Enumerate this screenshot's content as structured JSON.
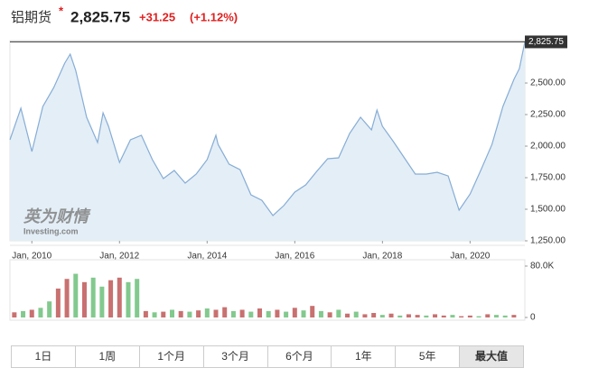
{
  "header": {
    "title": "铝期货",
    "marker": "*",
    "price": "2,825.75",
    "change": "+31.25",
    "change_pct": "(+1.12%)"
  },
  "watermark": {
    "brand": "英为财情",
    "site": "Investing.com"
  },
  "chart_data": [
    {
      "type": "area",
      "color": "#86add6",
      "fill": "#e4eef6",
      "x": [
        2009.5,
        2009.75,
        2010.0,
        2010.25,
        2010.5,
        2010.75,
        2010.875,
        2011.0,
        2011.25,
        2011.5,
        2011.625,
        2011.75,
        2012.0,
        2012.25,
        2012.5,
        2012.75,
        2013.0,
        2013.25,
        2013.5,
        2013.75,
        2014.0,
        2014.2,
        2014.25,
        2014.5,
        2014.75,
        2015.0,
        2015.25,
        2015.5,
        2015.75,
        2016.0,
        2016.25,
        2016.5,
        2016.75,
        2017.0,
        2017.25,
        2017.5,
        2017.75,
        2017.875,
        2018.0,
        2018.25,
        2018.5,
        2018.75,
        2019.0,
        2019.25,
        2019.5,
        2019.75,
        2020.0,
        2020.25,
        2020.5,
        2020.75,
        2021.0,
        2021.125,
        2021.25
      ],
      "values": [
        2050,
        2300,
        1957,
        2314,
        2464,
        2657,
        2729,
        2600,
        2229,
        2029,
        2264,
        2157,
        1871,
        2050,
        2086,
        1893,
        1743,
        1807,
        1707,
        1779,
        1893,
        2086,
        2014,
        1857,
        1814,
        1614,
        1571,
        1450,
        1529,
        1636,
        1693,
        1800,
        1900,
        1907,
        2100,
        2229,
        2129,
        2286,
        2157,
        2036,
        1907,
        1779,
        1779,
        1793,
        1764,
        1493,
        1621,
        1814,
        2014,
        2314,
        2529,
        2614,
        2825.75
      ],
      "xlim": [
        2009.5,
        2021.25
      ],
      "xticks": [
        {
          "value": 2010,
          "label": "Jan, 2010"
        },
        {
          "value": 2012,
          "label": "Jan, 2012"
        },
        {
          "value": 2014,
          "label": "Jan, 2014"
        },
        {
          "value": 2016,
          "label": "Jan, 2016"
        },
        {
          "value": 2018,
          "label": "Jan, 2018"
        },
        {
          "value": 2020,
          "label": "Jan, 2020"
        }
      ],
      "ylim": [
        1250,
        2836
      ],
      "yticks": [
        {
          "value": 1250,
          "label": "1,250.00"
        },
        {
          "value": 1500,
          "label": "1,500.00"
        },
        {
          "value": 1750,
          "label": "1,750.00"
        },
        {
          "value": 2000,
          "label": "2,000.00"
        },
        {
          "value": 2250,
          "label": "2,250.00"
        },
        {
          "value": 2500,
          "label": "2,500.00"
        }
      ],
      "grid": false
    },
    {
      "type": "bar",
      "x": [
        2009.6,
        2009.8,
        2010.0,
        2010.2,
        2010.4,
        2010.6,
        2010.8,
        2011.0,
        2011.2,
        2011.4,
        2011.6,
        2011.8,
        2012.0,
        2012.2,
        2012.4,
        2012.6,
        2012.8,
        2013.0,
        2013.2,
        2013.4,
        2013.6,
        2013.8,
        2014.0,
        2014.2,
        2014.4,
        2014.6,
        2014.8,
        2015.0,
        2015.2,
        2015.4,
        2015.6,
        2015.8,
        2016.0,
        2016.2,
        2016.4,
        2016.6,
        2016.8,
        2017.0,
        2017.2,
        2017.4,
        2017.6,
        2017.8,
        2018.0,
        2018.2,
        2018.4,
        2018.6,
        2018.8,
        2019.0,
        2019.2,
        2019.4,
        2019.6,
        2019.8,
        2020.0,
        2020.2,
        2020.4,
        2020.6,
        2020.8,
        2021.0
      ],
      "values": [
        8000,
        10000,
        12000,
        15000,
        25000,
        45000,
        60000,
        68000,
        55000,
        62000,
        48000,
        58000,
        62000,
        55000,
        60000,
        10000,
        8000,
        9000,
        12000,
        10000,
        9000,
        11000,
        14000,
        12000,
        16000,
        10000,
        12000,
        9000,
        14000,
        10000,
        12000,
        9000,
        15000,
        11000,
        18000,
        10000,
        8000,
        12000,
        6000,
        9000,
        5000,
        7000,
        4000,
        6000,
        3000,
        5000,
        4000,
        3000,
        5000,
        3000,
        4000,
        2000,
        3000,
        2000,
        5000,
        4000,
        3000,
        4000
      ],
      "colors": [
        "#c97070",
        "#82c98e",
        "#c97070",
        "#82c98e",
        "#82c98e",
        "#c97070",
        "#c97070",
        "#82c98e",
        "#c97070",
        "#82c98e",
        "#82c98e",
        "#c97070",
        "#c97070",
        "#82c98e",
        "#82c98e",
        "#c97070",
        "#82c98e",
        "#c97070",
        "#82c98e",
        "#c97070",
        "#82c98e",
        "#c97070",
        "#82c98e",
        "#c97070",
        "#c97070",
        "#82c98e",
        "#c97070",
        "#82c98e",
        "#c97070",
        "#82c98e",
        "#c97070",
        "#82c98e",
        "#c97070",
        "#82c98e",
        "#c97070",
        "#82c98e",
        "#c97070",
        "#82c98e",
        "#c97070",
        "#82c98e",
        "#c97070",
        "#c97070",
        "#82c98e",
        "#c97070",
        "#82c98e",
        "#c97070",
        "#c97070",
        "#82c98e",
        "#c97070",
        "#c97070",
        "#82c98e",
        "#c97070",
        "#c97070",
        "#82c98e",
        "#c97070",
        "#82c98e",
        "#82c98e",
        "#c97070"
      ],
      "xlim": [
        2009.5,
        2021.25
      ],
      "ylim": [
        0,
        80000
      ],
      "yticks": [
        0,
        {
          "value": 80000,
          "label": "80.0K"
        }
      ]
    }
  ],
  "range_buttons": [
    "1日",
    "1周",
    "1个月",
    "3个月",
    "6个月",
    "1年",
    "5年",
    "最大值"
  ],
  "selected_button": 7
}
